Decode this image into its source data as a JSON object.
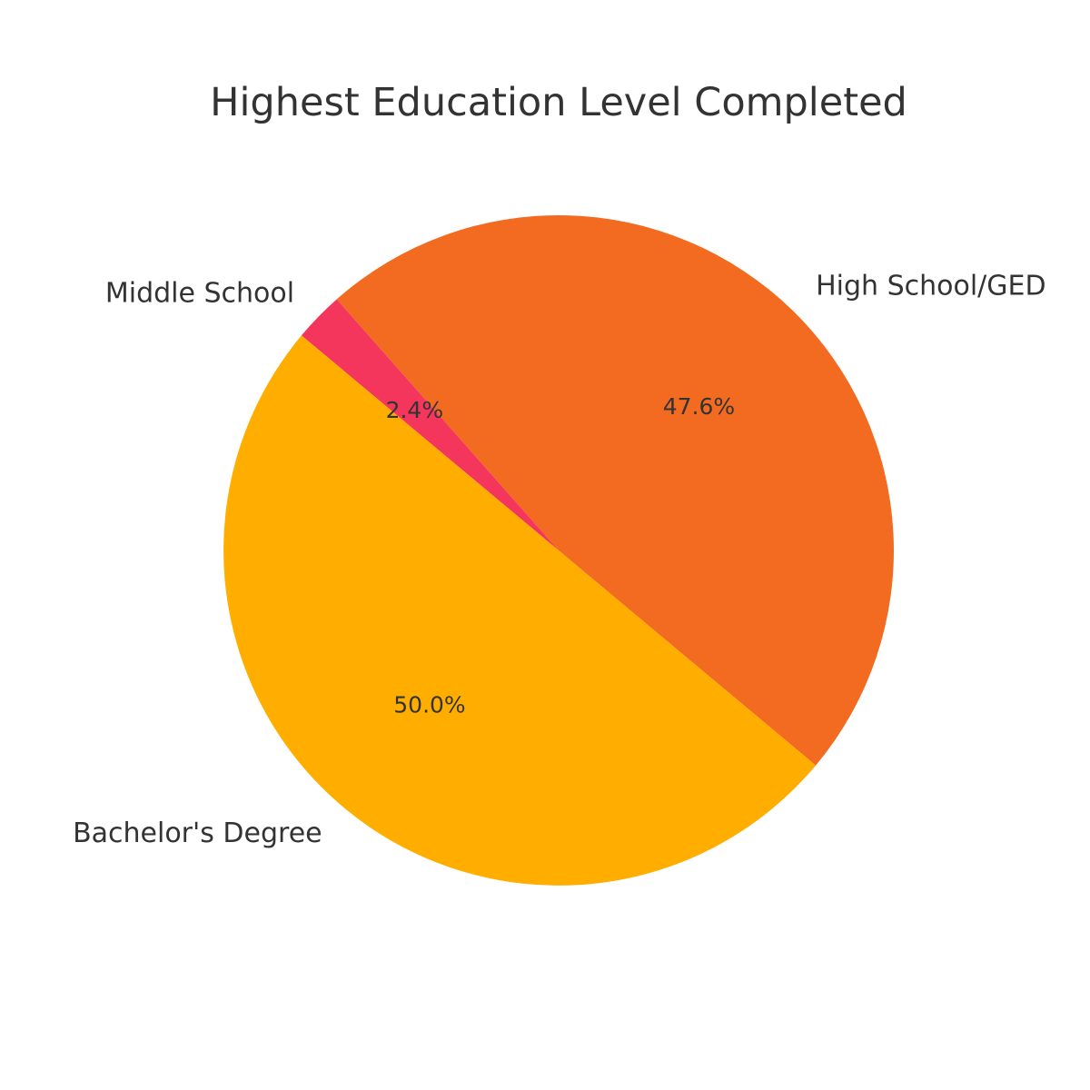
{
  "chart_data": {
    "type": "pie",
    "title": "Highest Education Level Completed",
    "slices": [
      {
        "label": "High School/GED",
        "value": 47.6,
        "pct_label": "47.6%",
        "color": "#F26B21"
      },
      {
        "label": "Middle School",
        "value": 2.4,
        "pct_label": "2.4%",
        "color": "#F5365C"
      },
      {
        "label": "Bachelor's Degree",
        "value": 50.0,
        "pct_label": "50.0%",
        "color": "#FFAE00"
      }
    ],
    "start_angle_deg": -39.9,
    "direction": "counterclockwise",
    "legend": "none"
  }
}
